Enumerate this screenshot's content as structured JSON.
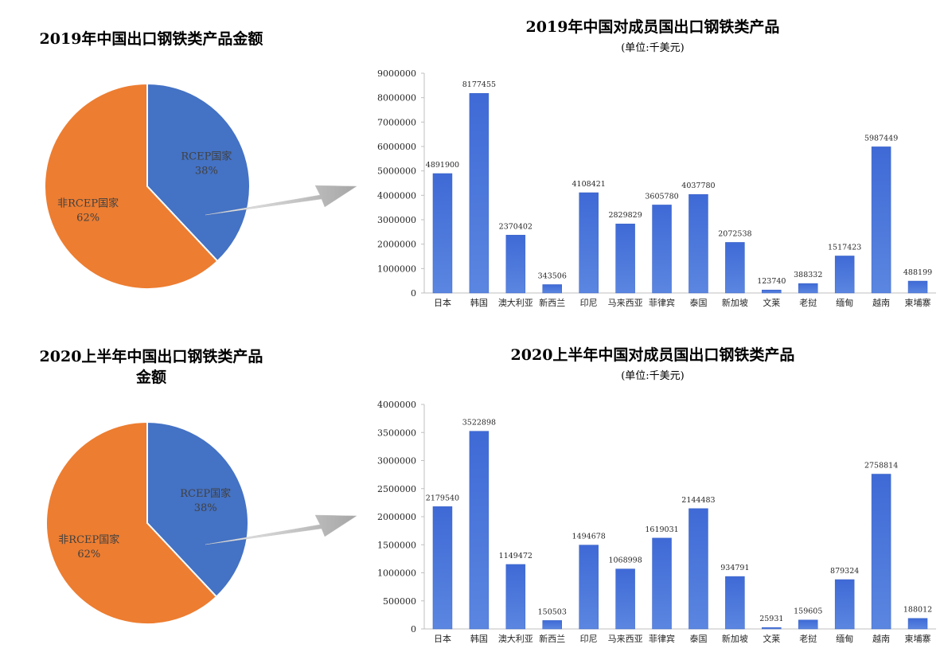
{
  "chart_data": [
    {
      "type": "pie",
      "title": "2019年中国出口钢铁类产品金额",
      "slices": [
        {
          "name": "RCEP国家",
          "label": "38%",
          "value": 38,
          "color": "#4472c4"
        },
        {
          "name": "非RCEP国家",
          "label": "62%",
          "value": 62,
          "color": "#ed7d31"
        }
      ]
    },
    {
      "type": "bar",
      "title": "2019年中国对成员国出口钢铁类产品",
      "subtitle": "(单位:千美元)",
      "categories": [
        "日本",
        "韩国",
        "澳大利亚",
        "新西兰",
        "印尼",
        "马来西亚",
        "菲律宾",
        "泰国",
        "新加坡",
        "文莱",
        "老挝",
        "缅甸",
        "越南",
        "柬埔寨"
      ],
      "values": [
        4891900,
        8177455,
        2370402,
        343506,
        4108421,
        2829829,
        3605780,
        4037780,
        2072538,
        123740,
        388332,
        1517423,
        5987449,
        488199
      ],
      "yticks": [
        "0",
        "1000000",
        "2000000",
        "3000000",
        "4000000",
        "5000000",
        "6000000",
        "7000000",
        "8000000",
        "9000000"
      ],
      "ylim": [
        0,
        9000000
      ],
      "bar_color": "#4472c4"
    },
    {
      "type": "pie",
      "title": "2020上半年中国出口钢铁类产品",
      "title_line2": "金额",
      "slices": [
        {
          "name": "RCEP国家",
          "label": "38%",
          "value": 38,
          "color": "#4472c4"
        },
        {
          "name": "非RCEP国家",
          "label": "62%",
          "value": 62,
          "color": "#ed7d31"
        }
      ]
    },
    {
      "type": "bar",
      "title": "2020上半年中国对成员国出口钢铁类产品",
      "subtitle": "(单位:千美元)",
      "categories": [
        "日本",
        "韩国",
        "澳大利亚",
        "新西兰",
        "印尼",
        "马来西亚",
        "菲律宾",
        "泰国",
        "新加坡",
        "文莱",
        "老挝",
        "缅甸",
        "越南",
        "柬埔寨"
      ],
      "values": [
        2179540,
        3522898,
        1149472,
        150503,
        1494678,
        1068998,
        1619031,
        2144483,
        934791,
        25931,
        159605,
        879324,
        2758814,
        188012
      ],
      "yticks": [
        "0",
        "500000",
        "1000000",
        "1500000",
        "2000000",
        "2500000",
        "3000000",
        "3500000",
        "4000000"
      ],
      "ylim": [
        0,
        4000000
      ],
      "bar_color": "#4472c4"
    }
  ]
}
